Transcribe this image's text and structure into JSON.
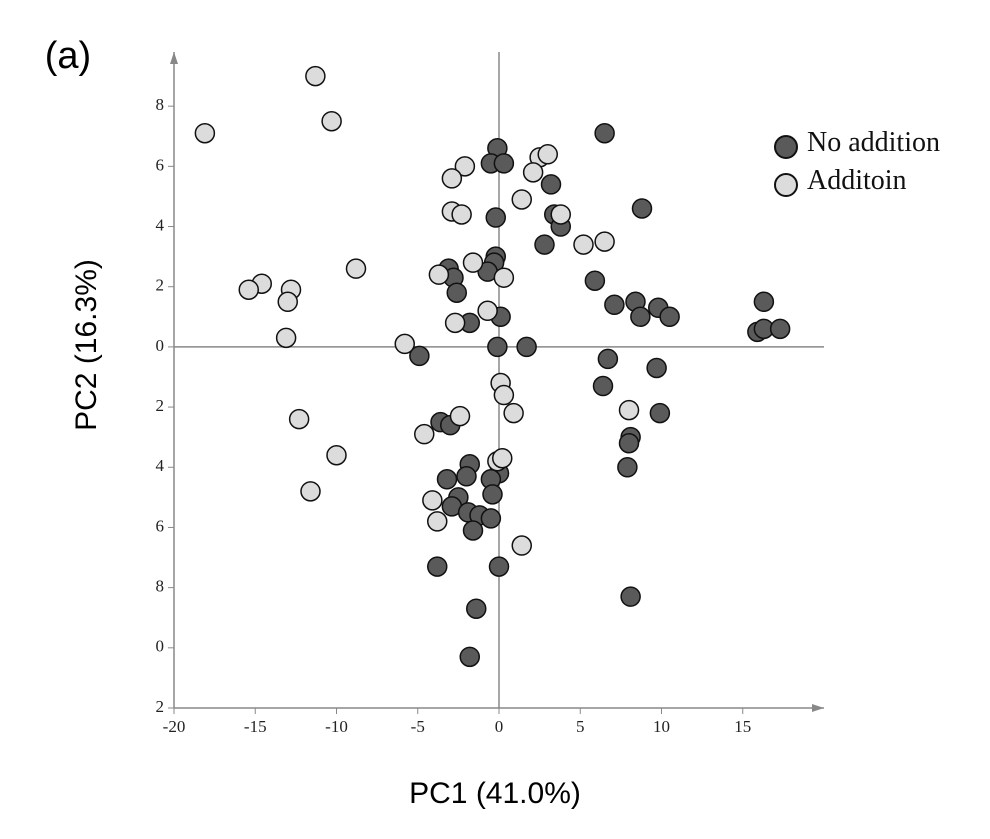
{
  "chart_data": {
    "type": "scatter",
    "panel_label": "(a)",
    "x_label": "PC1 (41.0%)",
    "y_label": "PC2 (16.3%)",
    "xlim": [
      -20,
      20
    ],
    "ylim": [
      -12,
      9.8
    ],
    "xticks": [
      -20,
      -15,
      -10,
      -5,
      0,
      5,
      10,
      15
    ],
    "yticks": [
      8,
      6,
      4,
      2,
      0,
      {
        "value": -2,
        "label": "2"
      },
      {
        "value": -4,
        "label": "4"
      },
      {
        "value": -6,
        "label": "6"
      },
      {
        "value": -8,
        "label": "8"
      },
      {
        "value": -10,
        "label": "0"
      },
      {
        "value": -12,
        "label": "2"
      }
    ],
    "legend": "upper right",
    "series": [
      {
        "name": "No addition",
        "color": "#5a5a5a",
        "x": [
          6.5,
          -0.1,
          -0.5,
          0.3,
          3.2,
          8.8,
          3.4,
          -0.2,
          3.8,
          2.8,
          -0.2,
          -0.3,
          -3.1,
          -0.7,
          -2.8,
          5.9,
          -2.6,
          7.1,
          8.4,
          9.8,
          8.7,
          10.5,
          16.3,
          15.9,
          16.3,
          17.3,
          -1.8,
          0.1,
          -0.1,
          1.7,
          -4.9,
          6.7,
          9.7,
          6.4,
          9.9,
          -3.6,
          -3.0,
          8.1,
          8.0,
          7.9,
          -1.8,
          0.0,
          -0.5,
          -3.2,
          -2.0,
          -2.5,
          -0.4,
          -2.9,
          -1.9,
          -1.2,
          -0.5,
          -1.6,
          -3.8,
          0.0,
          8.1,
          -1.4,
          -1.8
        ],
        "values": [
          7.1,
          6.6,
          6.1,
          6.1,
          5.4,
          4.6,
          4.4,
          4.3,
          4.0,
          3.4,
          3.0,
          2.8,
          2.6,
          2.5,
          2.3,
          2.2,
          1.8,
          1.4,
          1.5,
          1.3,
          1.0,
          1.0,
          1.5,
          0.5,
          0.6,
          0.6,
          0.8,
          1.0,
          0.0,
          0.0,
          -0.3,
          -0.4,
          -0.7,
          -1.3,
          -2.2,
          -2.5,
          -2.6,
          -3.0,
          -3.2,
          -4.0,
          -3.9,
          -4.2,
          -4.4,
          -4.4,
          -4.3,
          -5.0,
          -4.9,
          -5.3,
          -5.5,
          -5.6,
          -5.7,
          -6.1,
          -7.3,
          -7.3,
          -8.3,
          -8.7,
          -10.3
        ]
      },
      {
        "name": "Additoin",
        "color": "#dcdcdc",
        "x": [
          -11.3,
          -18.1,
          -10.3,
          -2.1,
          -2.9,
          2.5,
          3.0,
          2.1,
          1.4,
          -2.9,
          -2.3,
          3.8,
          5.2,
          6.5,
          -8.8,
          -14.6,
          -15.4,
          -12.8,
          -13.0,
          -13.1,
          -1.6,
          -3.7,
          0.3,
          -0.7,
          -2.7,
          -5.8,
          0.1,
          0.3,
          0.9,
          8.0,
          -2.4,
          -12.3,
          -4.6,
          -10.0,
          -0.1,
          0.2,
          -11.6,
          -4.1,
          -3.8,
          1.4
        ],
        "values": [
          9.0,
          7.1,
          7.5,
          6.0,
          5.6,
          6.3,
          6.4,
          5.8,
          4.9,
          4.5,
          4.4,
          4.4,
          3.4,
          3.5,
          2.6,
          2.1,
          1.9,
          1.9,
          1.5,
          0.3,
          2.8,
          2.4,
          2.3,
          1.2,
          0.8,
          0.1,
          -1.2,
          -1.6,
          -2.2,
          -2.1,
          -2.3,
          -2.4,
          -2.9,
          -3.6,
          -3.8,
          -3.7,
          -4.8,
          -5.1,
          -5.8,
          -6.6
        ]
      }
    ]
  }
}
